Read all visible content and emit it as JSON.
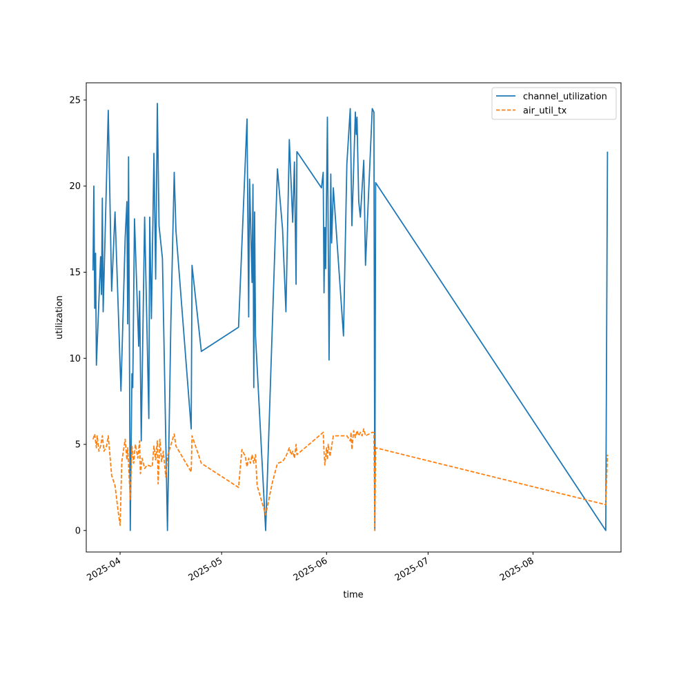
{
  "chart_data": {
    "type": "line",
    "title": "",
    "xlabel": "time",
    "ylabel": "utilization",
    "x_type": "date",
    "xlim": [
      "2025-03-22",
      "2025-08-27"
    ],
    "ylim": [
      -1.25,
      26.0
    ],
    "yticks": [
      0,
      5,
      10,
      15,
      20,
      25
    ],
    "xticks": [
      {
        "date": "2025-04-01",
        "label": "2025-04"
      },
      {
        "date": "2025-05-01",
        "label": "2025-05"
      },
      {
        "date": "2025-06-01",
        "label": "2025-06"
      },
      {
        "date": "2025-07-01",
        "label": "2025-07"
      },
      {
        "date": "2025-08-01",
        "label": "2025-08"
      }
    ],
    "grid": false,
    "legend": {
      "position": "top-right"
    },
    "series": [
      {
        "name": "channel_utilization",
        "color": "#1f77b4",
        "dash": "solid",
        "points": [
          [
            "2025-03-24 00:00",
            15.1
          ],
          [
            "2025-03-24 06:00",
            20.0
          ],
          [
            "2025-03-24 12:00",
            12.9
          ],
          [
            "2025-03-24 18:00",
            16.1
          ],
          [
            "2025-03-25 00:00",
            9.6
          ],
          [
            "2025-03-26 06:00",
            15.9
          ],
          [
            "2025-03-26 12:00",
            13.7
          ],
          [
            "2025-03-26 18:00",
            19.3
          ],
          [
            "2025-03-27 00:00",
            12.7
          ],
          [
            "2025-03-28 12:00",
            24.4
          ],
          [
            "2025-03-29 12:00",
            13.9
          ],
          [
            "2025-03-30 12:00",
            18.5
          ],
          [
            "2025-04-01 06:00",
            8.1
          ],
          [
            "2025-04-02 12:00",
            17.0
          ],
          [
            "2025-04-03 00:00",
            19.1
          ],
          [
            "2025-04-03 06:00",
            12.0
          ],
          [
            "2025-04-03 12:00",
            21.7
          ],
          [
            "2025-04-04 00:00",
            0.0
          ],
          [
            "2025-04-04 12:00",
            9.1
          ],
          [
            "2025-04-04 18:00",
            8.3
          ],
          [
            "2025-04-05 06:00",
            18.1
          ],
          [
            "2025-04-06 12:00",
            10.7
          ],
          [
            "2025-04-06 18:00",
            13.9
          ],
          [
            "2025-04-07 06:00",
            5.2
          ],
          [
            "2025-04-08 06:00",
            18.2
          ],
          [
            "2025-04-09 12:00",
            6.5
          ],
          [
            "2025-04-09 18:00",
            18.2
          ],
          [
            "2025-04-10 06:00",
            12.3
          ],
          [
            "2025-04-11 00:00",
            21.9
          ],
          [
            "2025-04-11 12:00",
            14.6
          ],
          [
            "2025-04-12 00:00",
            24.8
          ],
          [
            "2025-04-12 12:00",
            17.7
          ],
          [
            "2025-04-13 12:00",
            15.8
          ],
          [
            "2025-04-15 00:00",
            0.0
          ],
          [
            "2025-04-16 00:00",
            12.0
          ],
          [
            "2025-04-17 00:00",
            20.8
          ],
          [
            "2025-04-17 12:00",
            17.4
          ],
          [
            "2025-04-22 00:00",
            5.9
          ],
          [
            "2025-04-22 06:00",
            15.4
          ],
          [
            "2025-04-25 00:00",
            10.4
          ],
          [
            "2025-05-06 00:00",
            11.8
          ],
          [
            "2025-05-08 12:00",
            23.9
          ],
          [
            "2025-05-09 00:00",
            12.4
          ],
          [
            "2025-05-09 06:00",
            20.4
          ],
          [
            "2025-05-10 00:00",
            14.4
          ],
          [
            "2025-05-10 06:00",
            20.1
          ],
          [
            "2025-05-10 12:00",
            8.3
          ],
          [
            "2025-05-10 18:00",
            18.5
          ],
          [
            "2025-05-11 00:00",
            11.3
          ],
          [
            "2025-05-14 00:00",
            0.0
          ],
          [
            "2025-05-17 12:00",
            21.0
          ],
          [
            "2025-05-19 00:00",
            17.5
          ],
          [
            "2025-05-20 00:00",
            12.7
          ],
          [
            "2025-05-21 00:00",
            22.7
          ],
          [
            "2025-05-22 00:00",
            17.9
          ],
          [
            "2025-05-22 12:00",
            21.4
          ],
          [
            "2025-05-23 00:00",
            14.3
          ],
          [
            "2025-05-23 06:00",
            22.0
          ],
          [
            "2025-05-30 12:00",
            19.9
          ],
          [
            "2025-05-31 00:00",
            20.8
          ],
          [
            "2025-05-31 06:00",
            13.8
          ],
          [
            "2025-05-31 12:00",
            17.6
          ],
          [
            "2025-05-31 18:00",
            15.2
          ],
          [
            "2025-06-01 06:00",
            24.0
          ],
          [
            "2025-06-01 18:00",
            9.9
          ],
          [
            "2025-06-02 06:00",
            20.7
          ],
          [
            "2025-06-02 12:00",
            16.7
          ],
          [
            "2025-06-03 00:00",
            19.9
          ],
          [
            "2025-06-06 00:00",
            11.3
          ],
          [
            "2025-06-07 00:00",
            21.3
          ],
          [
            "2025-06-08 00:00",
            24.5
          ],
          [
            "2025-06-08 12:00",
            17.7
          ],
          [
            "2025-06-09 12:00",
            24.3
          ],
          [
            "2025-06-09 18:00",
            23.0
          ],
          [
            "2025-06-10 00:00",
            24.0
          ],
          [
            "2025-06-10 12:00",
            19.1
          ],
          [
            "2025-06-11 00:00",
            18.2
          ],
          [
            "2025-06-12 00:00",
            21.5
          ],
          [
            "2025-06-12 12:00",
            15.4
          ],
          [
            "2025-06-14 12:00",
            24.5
          ],
          [
            "2025-06-15 00:00",
            24.3
          ],
          [
            "2025-06-15 06:00",
            0.0
          ],
          [
            "2025-06-15 12:00",
            20.2
          ],
          [
            "2025-08-22 12:00",
            0.0
          ],
          [
            "2025-08-23 00:00",
            22.0
          ]
        ]
      },
      {
        "name": "air_util_tx",
        "color": "#ff7f0e",
        "dash": "dashed",
        "points": [
          [
            "2025-03-24 00:00",
            5.3
          ],
          [
            "2025-03-24 12:00",
            5.6
          ],
          [
            "2025-03-25 00:00",
            4.8
          ],
          [
            "2025-03-25 06:00",
            5.5
          ],
          [
            "2025-03-25 18:00",
            4.6
          ],
          [
            "2025-03-26 06:00",
            4.9
          ],
          [
            "2025-03-26 18:00",
            5.5
          ],
          [
            "2025-03-27 06:00",
            4.6
          ],
          [
            "2025-03-28 00:00",
            4.9
          ],
          [
            "2025-03-28 12:00",
            5.5
          ],
          [
            "2025-03-29 12:00",
            3.2
          ],
          [
            "2025-03-30 12:00",
            2.6
          ],
          [
            "2025-03-31 12:00",
            1.0
          ],
          [
            "2025-04-01 00:00",
            0.3
          ],
          [
            "2025-04-01 12:00",
            4.0
          ],
          [
            "2025-04-02 12:00",
            5.3
          ],
          [
            "2025-04-03 00:00",
            4.1
          ],
          [
            "2025-04-03 06:00",
            4.8
          ],
          [
            "2025-04-04 00:00",
            1.8
          ],
          [
            "2025-04-04 12:00",
            4.9
          ],
          [
            "2025-04-05 00:00",
            3.9
          ],
          [
            "2025-04-05 12:00",
            5.0
          ],
          [
            "2025-04-06 06:00",
            4.2
          ],
          [
            "2025-04-06 18:00",
            5.2
          ],
          [
            "2025-04-07 00:00",
            3.3
          ],
          [
            "2025-04-07 12:00",
            4.2
          ],
          [
            "2025-04-08 06:00",
            3.6
          ],
          [
            "2025-04-09 00:00",
            3.8
          ],
          [
            "2025-04-10 12:00",
            3.7
          ],
          [
            "2025-04-11 00:00",
            4.9
          ],
          [
            "2025-04-11 12:00",
            4.1
          ],
          [
            "2025-04-12 00:00",
            5.2
          ],
          [
            "2025-04-12 06:00",
            2.7
          ],
          [
            "2025-04-12 18:00",
            5.3
          ],
          [
            "2025-04-13 06:00",
            4.0
          ],
          [
            "2025-04-13 18:00",
            4.6
          ],
          [
            "2025-04-14 12:00",
            3.1
          ],
          [
            "2025-04-15 00:00",
            4.3
          ],
          [
            "2025-04-16 12:00",
            5.3
          ],
          [
            "2025-04-17 00:00",
            5.6
          ],
          [
            "2025-04-17 12:00",
            4.9
          ],
          [
            "2025-04-22 00:00",
            3.4
          ],
          [
            "2025-04-22 06:00",
            5.5
          ],
          [
            "2025-04-25 00:00",
            3.9
          ],
          [
            "2025-05-06 00:00",
            2.5
          ],
          [
            "2025-05-07 00:00",
            4.7
          ],
          [
            "2025-05-08 00:00",
            4.3
          ],
          [
            "2025-05-08 12:00",
            3.7
          ],
          [
            "2025-05-09 00:00",
            4.2
          ],
          [
            "2025-05-09 12:00",
            3.9
          ],
          [
            "2025-05-10 00:00",
            4.4
          ],
          [
            "2025-05-10 12:00",
            3.9
          ],
          [
            "2025-05-11 00:00",
            4.4
          ],
          [
            "2025-05-11 12:00",
            2.6
          ],
          [
            "2025-05-14 00:00",
            0.9
          ],
          [
            "2025-05-16 00:00",
            2.8
          ],
          [
            "2025-05-17 12:00",
            3.9
          ],
          [
            "2025-05-19 00:00",
            4.0
          ],
          [
            "2025-05-20 00:00",
            4.3
          ],
          [
            "2025-05-21 00:00",
            4.8
          ],
          [
            "2025-05-21 12:00",
            4.4
          ],
          [
            "2025-05-22 00:00",
            4.6
          ],
          [
            "2025-05-22 12:00",
            4.2
          ],
          [
            "2025-05-23 00:00",
            5.0
          ],
          [
            "2025-05-23 06:00",
            4.4
          ],
          [
            "2025-05-31 00:00",
            5.7
          ],
          [
            "2025-05-31 06:00",
            4.6
          ],
          [
            "2025-05-31 12:00",
            3.8
          ],
          [
            "2025-06-01 00:00",
            4.8
          ],
          [
            "2025-06-01 06:00",
            4.1
          ],
          [
            "2025-06-01 12:00",
            5.0
          ],
          [
            "2025-06-02 00:00",
            4.3
          ],
          [
            "2025-06-03 00:00",
            5.5
          ],
          [
            "2025-06-07 00:00",
            5.5
          ],
          [
            "2025-06-08 00:00",
            5.2
          ],
          [
            "2025-06-08 06:00",
            5.7
          ],
          [
            "2025-06-08 12:00",
            4.7
          ],
          [
            "2025-06-09 00:00",
            5.8
          ],
          [
            "2025-06-09 12:00",
            5.4
          ],
          [
            "2025-06-10 00:00",
            5.8
          ],
          [
            "2025-06-10 12:00",
            5.5
          ],
          [
            "2025-06-11 00:00",
            5.7
          ],
          [
            "2025-06-11 12:00",
            5.5
          ],
          [
            "2025-06-12 00:00",
            5.9
          ],
          [
            "2025-06-12 12:00",
            5.5
          ],
          [
            "2025-06-14 12:00",
            5.7
          ],
          [
            "2025-06-15 00:00",
            5.7
          ],
          [
            "2025-06-15 06:00",
            0.0
          ],
          [
            "2025-06-15 12:00",
            4.8
          ],
          [
            "2025-08-22 12:00",
            1.5
          ],
          [
            "2025-08-23 00:00",
            4.4
          ]
        ]
      }
    ]
  }
}
